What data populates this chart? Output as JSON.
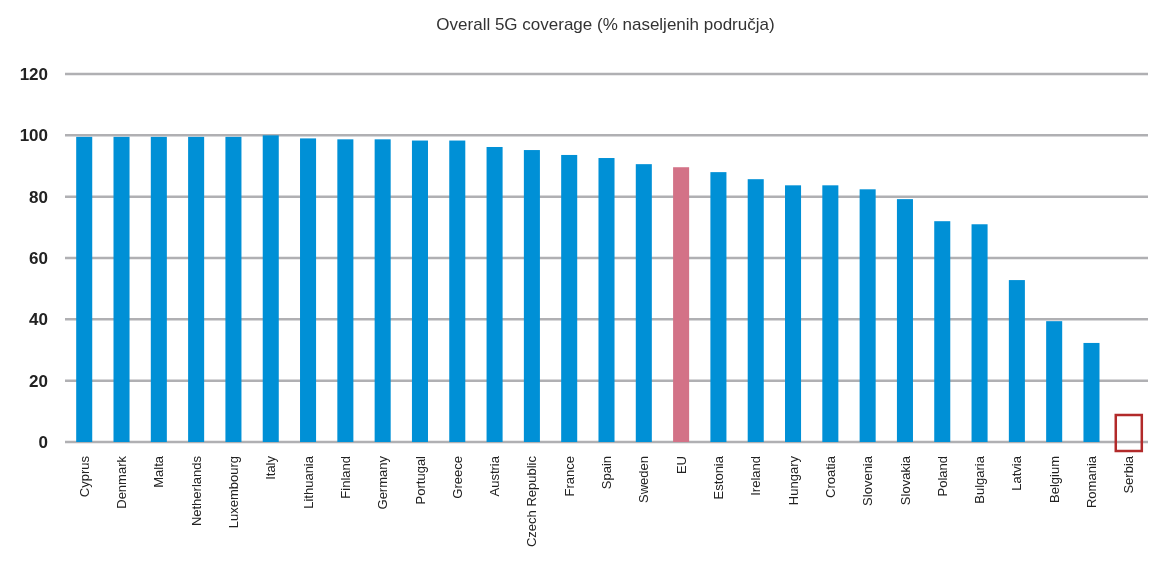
{
  "chart_data": {
    "type": "bar",
    "title": "Overall 5G coverage (% naseljenih područja)",
    "categories": [
      "Cyprus",
      "Denmark",
      "Malta",
      "Netherlands",
      "Luxembourg",
      "Italy",
      "Lithuania",
      "Finland",
      "Germany",
      "Portugal",
      "Greece",
      "Austria",
      "Czech Republic",
      "France",
      "Spain",
      "Sweden",
      "EU",
      "Estonia",
      "Ireland",
      "Hungary",
      "Croatia",
      "Slovenia",
      "Slovakia",
      "Poland",
      "Bulgaria",
      "Latvia",
      "Belgium",
      "Romania",
      "Serbia"
    ],
    "values": [
      99.5,
      99.5,
      99.5,
      99.5,
      99.5,
      100,
      99,
      98.7,
      98.7,
      98.3,
      98.3,
      96.2,
      95.2,
      93.6,
      92.6,
      90.6,
      89.6,
      88,
      85.7,
      83.7,
      83.7,
      82.4,
      79.2,
      72,
      71,
      52.8,
      39.4,
      32.3,
      null
    ],
    "colors": [
      "#0090d6",
      "#0090d6",
      "#0090d6",
      "#0090d6",
      "#0090d6",
      "#0090d6",
      "#0090d6",
      "#0090d6",
      "#0090d6",
      "#0090d6",
      "#0090d6",
      "#0090d6",
      "#0090d6",
      "#0090d6",
      "#0090d6",
      "#0090d6",
      "#d37287",
      "#0090d6",
      "#0090d6",
      "#0090d6",
      "#0090d6",
      "#0090d6",
      "#0090d6",
      "#0090d6",
      "#0090d6",
      "#0090d6",
      "#0090d6",
      "#0090d6",
      "#b22a2a"
    ],
    "ylim": [
      0,
      120
    ],
    "yticks": [
      0,
      20,
      40,
      60,
      80,
      100,
      120
    ],
    "grid": "y"
  }
}
